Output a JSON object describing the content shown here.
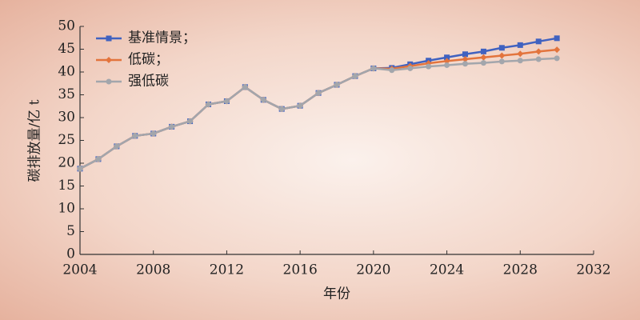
{
  "chart_data": {
    "type": "line",
    "x_label": "年份",
    "y_label": "碳排放量/亿 t",
    "x": [
      2004,
      2005,
      2006,
      2007,
      2008,
      2009,
      2010,
      2011,
      2012,
      2013,
      2014,
      2015,
      2016,
      2017,
      2018,
      2019,
      2020,
      2021,
      2022,
      2023,
      2024,
      2025,
      2026,
      2027,
      2028,
      2029,
      2030
    ],
    "series": [
      {
        "name": "基准情景；",
        "color": "#4062c0",
        "marker": "square",
        "values": [
          18.8,
          20.9,
          23.7,
          26.0,
          26.5,
          28.0,
          29.2,
          32.9,
          33.6,
          36.7,
          33.9,
          31.9,
          32.6,
          35.4,
          37.2,
          39.1,
          40.8,
          40.9,
          41.7,
          42.5,
          43.2,
          43.9,
          44.5,
          45.3,
          45.9,
          46.7,
          47.4
        ]
      },
      {
        "name": "低碳；",
        "color": "#e3743d",
        "marker": "diamond",
        "values": [
          18.8,
          20.9,
          23.7,
          26.0,
          26.5,
          28.0,
          29.2,
          32.9,
          33.6,
          36.7,
          33.9,
          31.9,
          32.6,
          35.4,
          37.2,
          39.1,
          40.8,
          40.7,
          41.3,
          41.9,
          42.4,
          42.8,
          43.2,
          43.6,
          44.0,
          44.5,
          44.9
        ]
      },
      {
        "name": "强低碳",
        "color": "#a3a6ac",
        "marker": "circle",
        "values": [
          18.8,
          20.9,
          23.7,
          26.0,
          26.5,
          28.0,
          29.2,
          32.9,
          33.6,
          36.7,
          33.9,
          31.9,
          32.6,
          35.4,
          37.2,
          39.1,
          40.8,
          40.4,
          40.8,
          41.2,
          41.5,
          41.8,
          42.0,
          42.3,
          42.5,
          42.8,
          43.0
        ]
      }
    ],
    "xlim": [
      2004,
      2032
    ],
    "xticks": [
      2004,
      2008,
      2012,
      2016,
      2020,
      2024,
      2028,
      2032
    ],
    "ylim": [
      0,
      50
    ],
    "yticks": [
      0,
      5,
      10,
      15,
      20,
      25,
      30,
      35,
      40,
      45,
      50
    ],
    "legend": "upper-left"
  }
}
